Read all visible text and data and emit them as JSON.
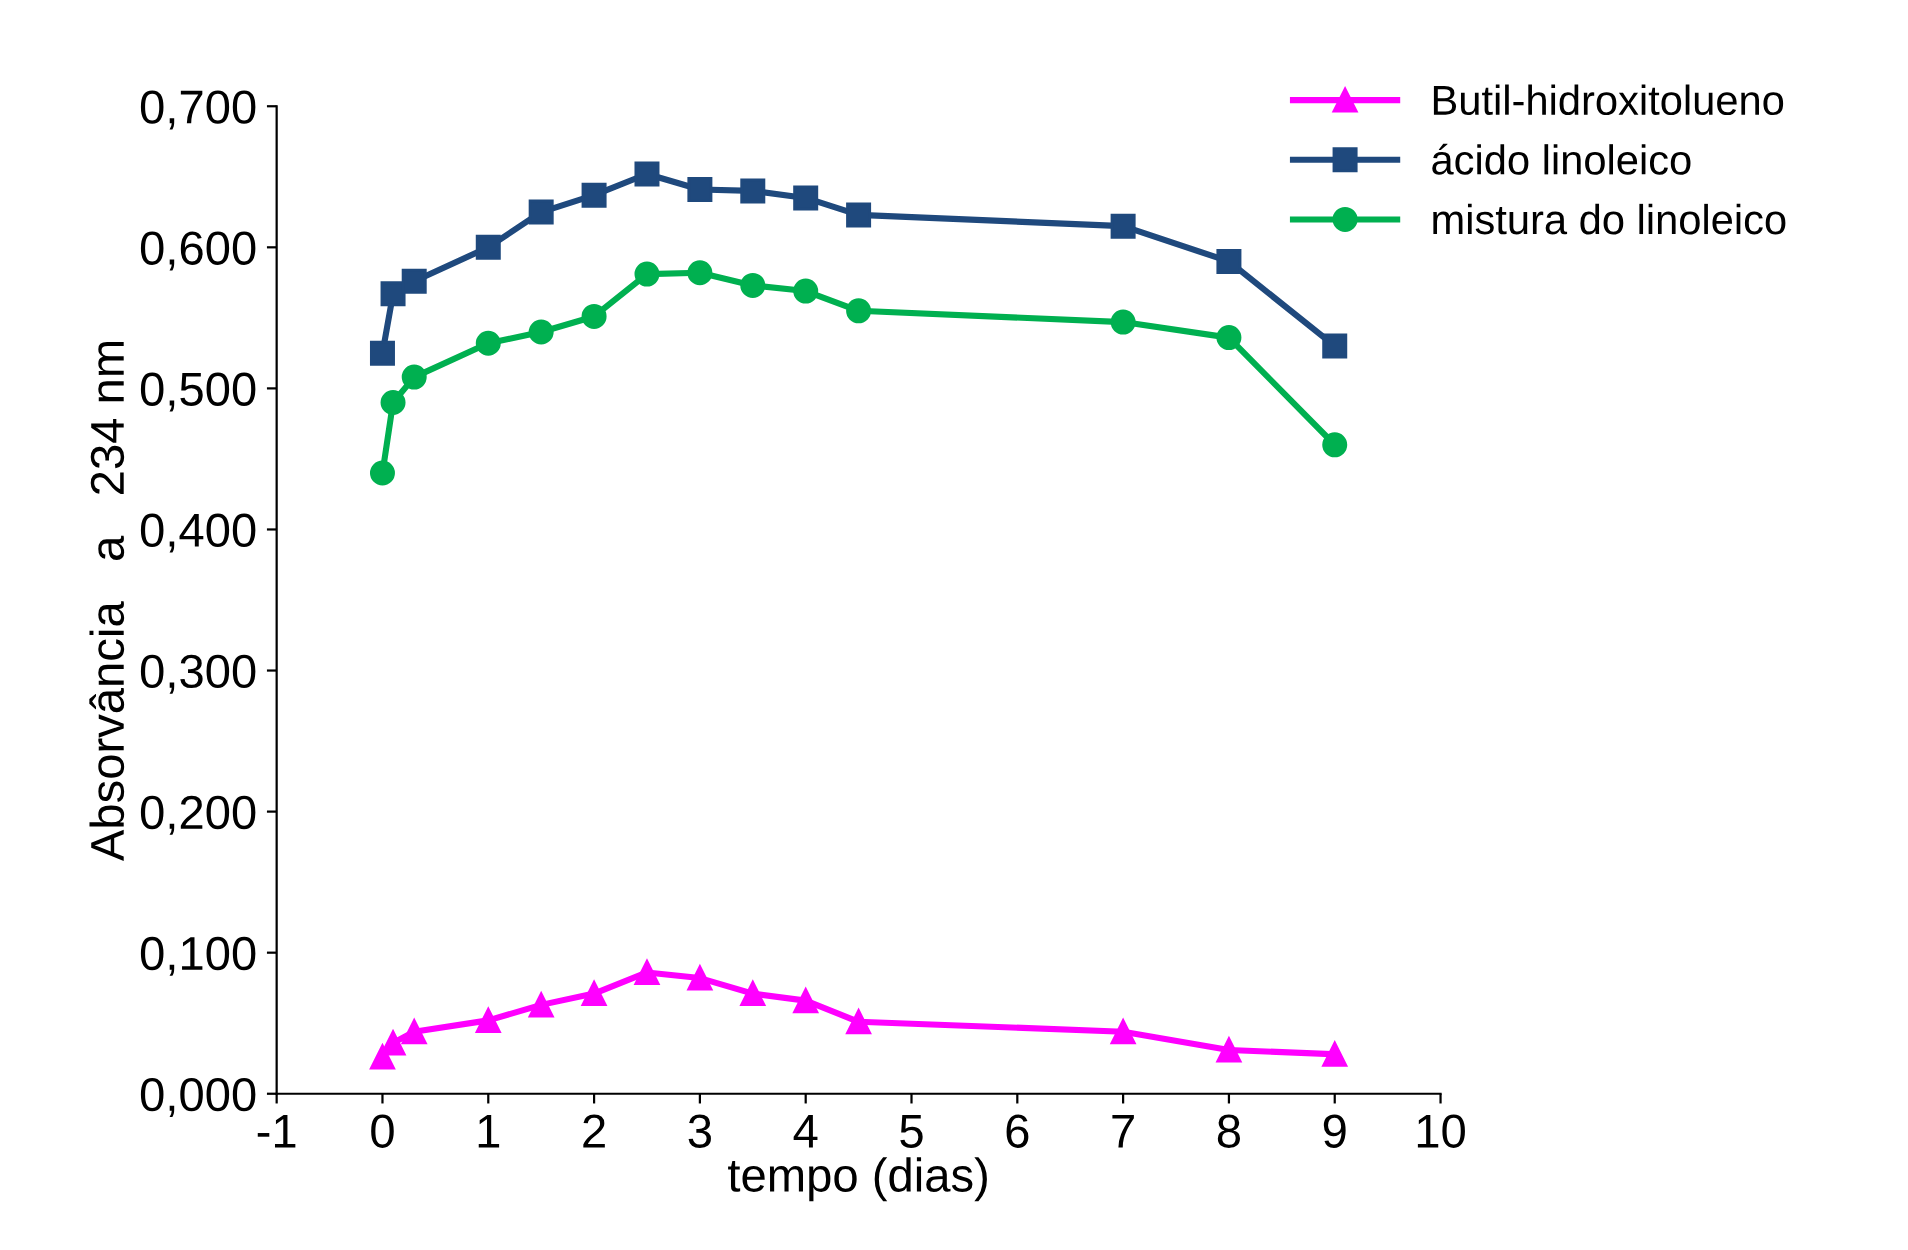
{
  "chart_data": {
    "type": "line",
    "xlabel": "tempo (dias)",
    "ylabel": "Absorvância   a   234 nm",
    "x": [
      0,
      0.1,
      0.3,
      1,
      1.5,
      2,
      2.5,
      3,
      3.5,
      4,
      4.5,
      7,
      8,
      9
    ],
    "series": [
      {
        "name": "Butil-hidroxitolueno",
        "color": "#ff00ff",
        "marker": "triangle",
        "values": [
          0.026,
          0.036,
          0.044,
          0.052,
          0.063,
          0.071,
          0.086,
          0.082,
          0.071,
          0.066,
          0.051,
          0.044,
          0.031,
          0.028
        ]
      },
      {
        "name": "ácido linoleico",
        "color": "#1f497d",
        "marker": "square",
        "values": [
          0.525,
          0.567,
          0.576,
          0.6,
          0.625,
          0.637,
          0.652,
          0.641,
          0.64,
          0.635,
          0.623,
          0.615,
          0.59,
          0.53
        ]
      },
      {
        "name": "mistura do linoleico",
        "color": "#00b050",
        "marker": "circle",
        "values": [
          0.44,
          0.49,
          0.508,
          0.532,
          0.54,
          0.551,
          0.581,
          0.582,
          0.573,
          0.569,
          0.555,
          0.547,
          0.536,
          0.46
        ]
      }
    ],
    "xlim": [
      -1,
      10
    ],
    "xticks": [
      -1,
      0,
      1,
      2,
      3,
      4,
      5,
      6,
      7,
      8,
      9,
      10
    ],
    "ylim": [
      0,
      0.7
    ],
    "yticks": [
      {
        "value": 0,
        "label": "0,000"
      },
      {
        "value": 0.1,
        "label": "0,100"
      },
      {
        "value": 0.2,
        "label": "0,200"
      },
      {
        "value": 0.3,
        "label": "0,300"
      },
      {
        "value": 0.4,
        "label": "0,400"
      },
      {
        "value": 0.5,
        "label": "0,500"
      },
      {
        "value": 0.6,
        "label": "0,600"
      },
      {
        "value": 0.7,
        "label": "0,700"
      }
    ],
    "grid": false,
    "legend": "top right",
    "line_style": "solid"
  }
}
